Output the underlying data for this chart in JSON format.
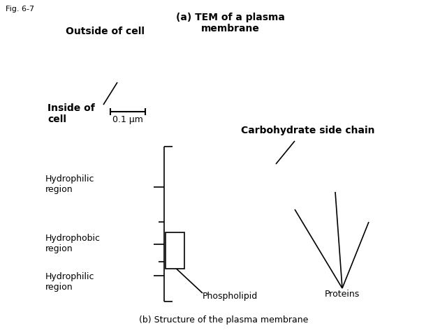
{
  "fig_label": "Fig. 6-7",
  "title_a": "(a) TEM of a plasma\nmembrane",
  "title_b": "(b) Structure of the plasma membrane",
  "outside_cell": "Outside of cell",
  "inside_cell": "Inside of\ncell",
  "scale_bar_label": "0.1 μm",
  "carbohydrate_label": "Carbohydrate side chain",
  "hydrophilic_region": "Hydrophilic\nregion",
  "hydrophobic_region": "Hydrophobic\nregion",
  "phospholipid_label": "Phospholipid",
  "proteins_label": "Proteins",
  "bg_color": "#ffffff",
  "line_color": "#000000",
  "font_color": "#000000"
}
